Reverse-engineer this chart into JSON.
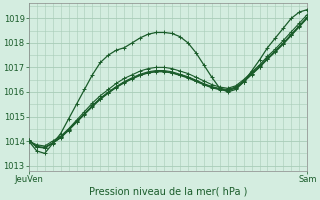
{
  "background_color": "#d4ede0",
  "grid_color": "#a8ccb8",
  "line_color": "#1a5c2a",
  "marker_color": "#1a5c2a",
  "title": "Pression niveau de la mer( hPa )",
  "xlabel_left": "JeuVen",
  "xlabel_right": "Sam",
  "ylim": [
    1012.8,
    1019.6
  ],
  "yticks": [
    1013,
    1014,
    1015,
    1016,
    1017,
    1018,
    1019
  ],
  "series": [
    [
      1014.0,
      1013.6,
      1013.5,
      1013.9,
      1014.3,
      1014.9,
      1015.5,
      1016.1,
      1016.7,
      1017.2,
      1017.5,
      1017.7,
      1017.8,
      1018.0,
      1018.2,
      1018.35,
      1018.42,
      1018.42,
      1018.38,
      1018.25,
      1018.0,
      1017.6,
      1017.1,
      1016.6,
      1016.15,
      1016.0,
      1016.1,
      1016.4,
      1016.85,
      1017.3,
      1017.8,
      1018.2,
      1018.6,
      1019.0,
      1019.25,
      1019.35
    ],
    [
      1014.0,
      1013.85,
      1013.8,
      1014.0,
      1014.2,
      1014.5,
      1014.85,
      1015.2,
      1015.55,
      1015.85,
      1016.1,
      1016.35,
      1016.55,
      1016.7,
      1016.85,
      1016.95,
      1017.0,
      1017.0,
      1016.95,
      1016.85,
      1016.75,
      1016.6,
      1016.45,
      1016.3,
      1016.2,
      1016.15,
      1016.25,
      1016.5,
      1016.8,
      1017.1,
      1017.45,
      1017.75,
      1018.1,
      1018.45,
      1018.8,
      1019.15
    ],
    [
      1014.05,
      1013.75,
      1013.72,
      1013.92,
      1014.15,
      1014.45,
      1014.8,
      1015.12,
      1015.45,
      1015.75,
      1016.0,
      1016.22,
      1016.42,
      1016.58,
      1016.72,
      1016.82,
      1016.87,
      1016.87,
      1016.82,
      1016.72,
      1016.62,
      1016.48,
      1016.34,
      1016.22,
      1016.14,
      1016.1,
      1016.2,
      1016.45,
      1016.75,
      1017.05,
      1017.38,
      1017.68,
      1018.0,
      1018.35,
      1018.7,
      1019.05
    ],
    [
      1014.05,
      1013.78,
      1013.75,
      1013.93,
      1014.15,
      1014.45,
      1014.78,
      1015.1,
      1015.42,
      1015.72,
      1015.97,
      1016.2,
      1016.39,
      1016.55,
      1016.69,
      1016.79,
      1016.84,
      1016.84,
      1016.79,
      1016.69,
      1016.59,
      1016.45,
      1016.31,
      1016.19,
      1016.11,
      1016.07,
      1016.17,
      1016.42,
      1016.72,
      1017.02,
      1017.35,
      1017.65,
      1017.97,
      1018.32,
      1018.67,
      1019.02
    ],
    [
      1014.02,
      1013.76,
      1013.73,
      1013.91,
      1014.13,
      1014.43,
      1014.76,
      1015.08,
      1015.4,
      1015.7,
      1015.95,
      1016.18,
      1016.37,
      1016.53,
      1016.67,
      1016.77,
      1016.82,
      1016.82,
      1016.77,
      1016.67,
      1016.57,
      1016.43,
      1016.29,
      1016.17,
      1016.09,
      1016.05,
      1016.15,
      1016.4,
      1016.7,
      1017.0,
      1017.33,
      1017.63,
      1017.95,
      1018.3,
      1018.65,
      1019.0
    ]
  ],
  "n_points": 36
}
